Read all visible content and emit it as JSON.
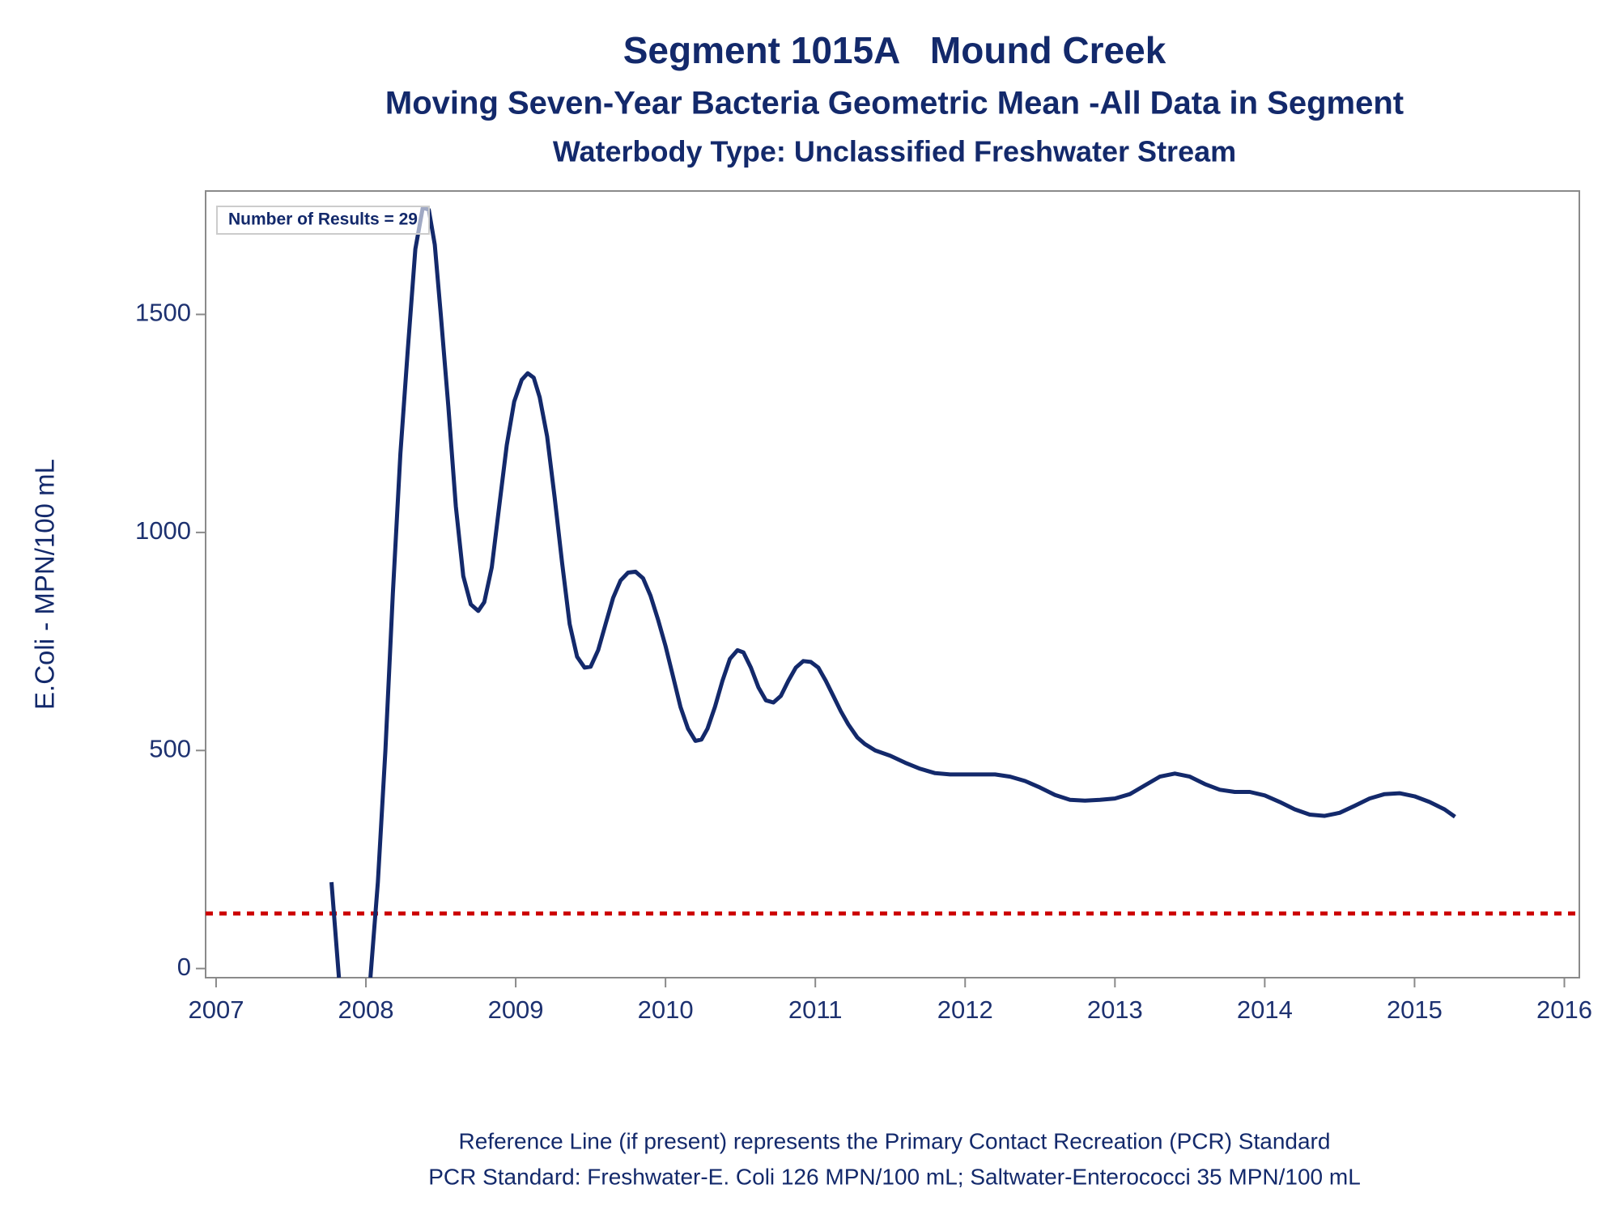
{
  "chart_data": {
    "type": "line",
    "title": "Segment 1015A   Mound Creek",
    "subtitles": [
      "Moving Seven-Year Bacteria Geometric Mean -All Data in Segment",
      "Waterbody Type: Unclassified Freshwater Stream"
    ],
    "y_label": "E.Coli - MPN/100 mL",
    "annotation": "Number of Results = 29",
    "footnotes": [
      "Reference Line (if present) represents the Primary Contact Recreation (PCR) Standard",
      "PCR Standard: Freshwater-E. Coli 126 MPN/100 mL; Saltwater-Enterococci 35 MPN/100 mL"
    ],
    "reference_line": {
      "value": 126,
      "color": "#cc0000"
    },
    "color": "#13296b",
    "x": [
      2007.77,
      2007.82,
      2007.93,
      2008.03,
      2008.08,
      2008.13,
      2008.18,
      2008.23,
      2008.28,
      2008.33,
      2008.38,
      2008.42,
      2008.46,
      2008.5,
      2008.55,
      2008.6,
      2008.65,
      2008.7,
      2008.75,
      2008.79,
      2008.84,
      2008.89,
      2008.94,
      2008.99,
      2009.04,
      2009.08,
      2009.12,
      2009.16,
      2009.21,
      2009.26,
      2009.31,
      2009.36,
      2009.41,
      2009.46,
      2009.5,
      2009.55,
      2009.6,
      2009.65,
      2009.7,
      2009.75,
      2009.8,
      2009.85,
      2009.9,
      2009.95,
      2010.0,
      2010.05,
      2010.1,
      2010.15,
      2010.2,
      2010.24,
      2010.28,
      2010.33,
      2010.38,
      2010.43,
      2010.48,
      2010.52,
      2010.57,
      2010.62,
      2010.67,
      2010.72,
      2010.77,
      2010.82,
      2010.87,
      2010.92,
      2010.97,
      2011.02,
      2011.07,
      2011.12,
      2011.17,
      2011.22,
      2011.28,
      2011.33,
      2011.4,
      2011.5,
      2011.6,
      2011.7,
      2011.8,
      2011.9,
      2012.0,
      2012.2,
      2012.3,
      2012.4,
      2012.5,
      2012.6,
      2012.7,
      2012.8,
      2012.9,
      2013.0,
      2013.1,
      2013.2,
      2013.3,
      2013.4,
      2013.5,
      2013.6,
      2013.7,
      2013.8,
      2013.9,
      2014.0,
      2014.1,
      2014.2,
      2014.3,
      2014.4,
      2014.5,
      2014.6,
      2014.7,
      2014.8,
      2014.9,
      2015.0,
      2015.1,
      2015.2,
      2015.27
    ],
    "values": [
      198,
      -21,
      null,
      -21,
      198,
      500,
      860,
      1180,
      1420,
      1650,
      1745,
      1740,
      1660,
      1500,
      1290,
      1060,
      900,
      835,
      820,
      840,
      920,
      1060,
      1200,
      1300,
      1350,
      1365,
      1355,
      1310,
      1220,
      1080,
      930,
      790,
      715,
      690,
      692,
      730,
      790,
      850,
      890,
      908,
      910,
      895,
      855,
      800,
      740,
      670,
      600,
      550,
      522,
      525,
      550,
      600,
      660,
      710,
      730,
      725,
      690,
      645,
      615,
      610,
      625,
      660,
      690,
      705,
      703,
      690,
      660,
      625,
      590,
      560,
      530,
      515,
      500,
      488,
      472,
      458,
      448,
      445,
      445,
      445,
      440,
      430,
      415,
      398,
      387,
      385,
      387,
      390,
      400,
      420,
      440,
      447,
      440,
      423,
      410,
      405,
      405,
      397,
      382,
      365,
      353,
      350,
      357,
      373,
      390,
      400,
      402,
      395,
      382,
      365,
      348
    ],
    "xlim": [
      2006.93,
      2016.1
    ],
    "ylim": [
      -21,
      1783
    ],
    "xticks": [
      2007,
      2008,
      2009,
      2010,
      2011,
      2012,
      2013,
      2014,
      2015,
      2016
    ],
    "yticks": [
      0,
      500,
      1000,
      1500
    ]
  }
}
